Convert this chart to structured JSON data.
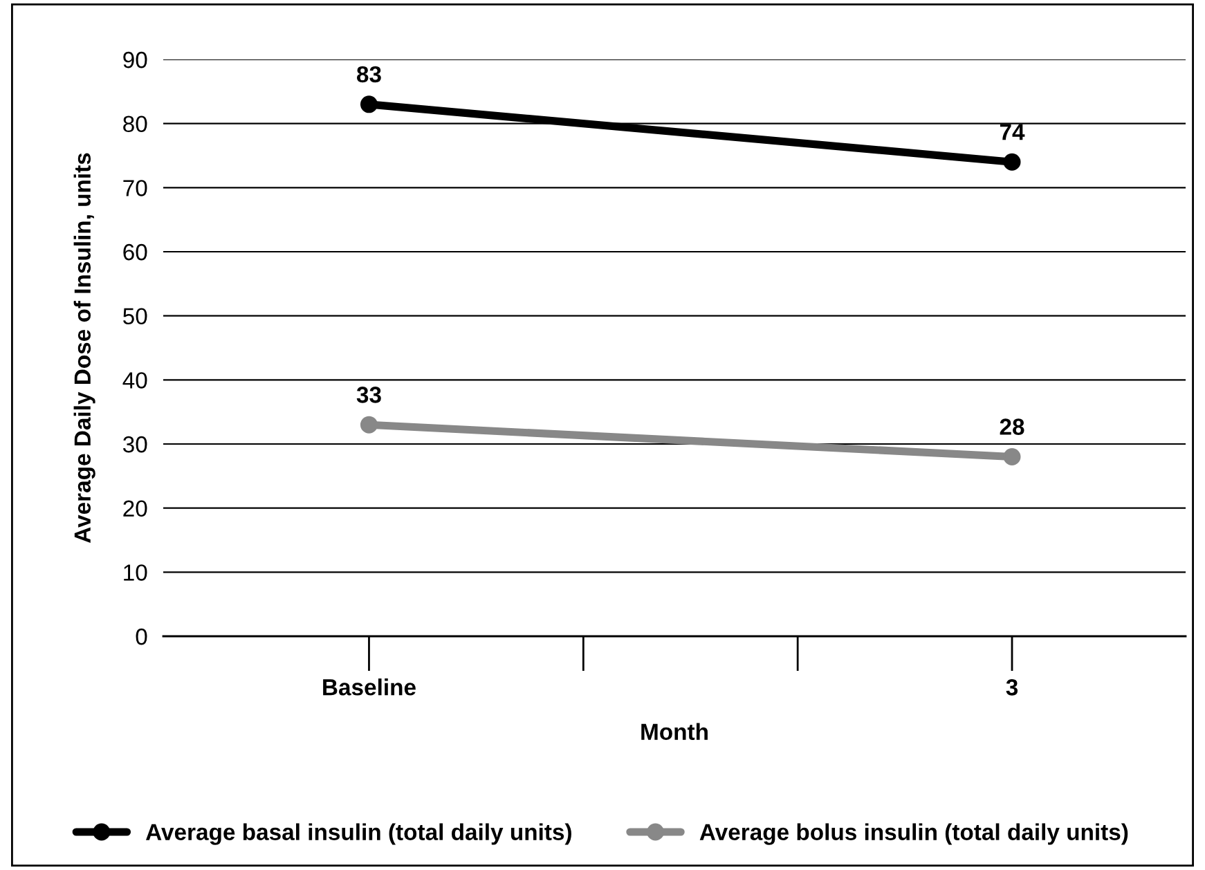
{
  "chart_data": {
    "type": "line",
    "xlabel": "Month",
    "ylabel": "Average Daily Dose of Insulin, units",
    "categories": [
      "Baseline",
      null,
      null,
      "3"
    ],
    "series": [
      {
        "name": "Average basal insulin (total daily units)",
        "color": "#000000",
        "values": [
          83,
          null,
          null,
          74
        ]
      },
      {
        "name": "Average bolus insulin (total daily units)",
        "color": "#888888",
        "values": [
          33,
          null,
          null,
          28
        ]
      }
    ],
    "ylim": [
      0,
      90
    ],
    "yticks": [
      0,
      10,
      20,
      30,
      40,
      50,
      60,
      70,
      80,
      90
    ],
    "grid": "y",
    "legend": "bottom",
    "marker": "circle",
    "line_style": "solid",
    "data_labels": true
  }
}
